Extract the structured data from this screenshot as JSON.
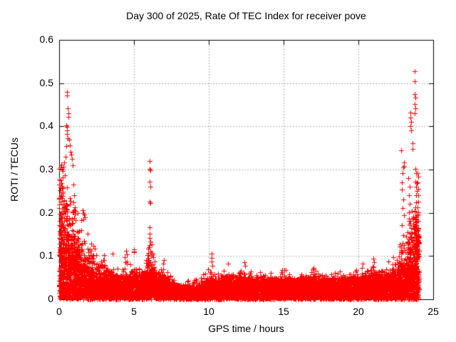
{
  "page": {
    "background": "#ffffff"
  },
  "chart_data": {
    "type": "scatter",
    "title": "Day 300 of 2025, Rate Of TEC Index for receiver pove",
    "xlabel": "GPS time / hours",
    "ylabel": "ROTI / TECUs",
    "xlim": [
      0,
      25
    ],
    "ylim": [
      0,
      0.6
    ],
    "xticks": [
      0,
      5,
      10,
      15,
      20,
      25
    ],
    "xtick_labels": [
      "0",
      "5",
      "10",
      "15",
      "20",
      "25"
    ],
    "yticks": [
      0,
      0.1,
      0.2,
      0.3,
      0.4,
      0.5,
      0.6
    ],
    "ytick_labels": [
      "0",
      "0.1",
      "0.2",
      "0.3",
      "0.4",
      "0.5",
      "0.6"
    ],
    "grid": true,
    "grid_style": "dashed",
    "grid_color": "#b0b0b0",
    "axis_color": "#000000",
    "marker": "plus",
    "marker_color": "#ff0000",
    "marker_size": 7,
    "legend": null,
    "x_data_range": [
      0,
      24.05
    ],
    "column_step": 0.01,
    "seed": 3002025,
    "baseline_band": [
      [
        0,
        0.07
      ],
      [
        0.5,
        0.08
      ],
      [
        1,
        0.075
      ],
      [
        1.5,
        0.06
      ],
      [
        2,
        0.05
      ],
      [
        3,
        0.045
      ],
      [
        4,
        0.042
      ],
      [
        5,
        0.042
      ],
      [
        6,
        0.05
      ],
      [
        6.5,
        0.045
      ],
      [
        7,
        0.04
      ],
      [
        7.6,
        0.032
      ],
      [
        8,
        0.026
      ],
      [
        9,
        0.026
      ],
      [
        9.5,
        0.03
      ],
      [
        10,
        0.036
      ],
      [
        11,
        0.04
      ],
      [
        12,
        0.042
      ],
      [
        13,
        0.038
      ],
      [
        14,
        0.036
      ],
      [
        15,
        0.038
      ],
      [
        16,
        0.036
      ],
      [
        17,
        0.04
      ],
      [
        18,
        0.037
      ],
      [
        19,
        0.037
      ],
      [
        20,
        0.04
      ],
      [
        21,
        0.042
      ],
      [
        22,
        0.045
      ],
      [
        22.8,
        0.05
      ],
      [
        23.3,
        0.055
      ],
      [
        23.8,
        0.06
      ],
      [
        24.05,
        0.055
      ]
    ],
    "dense_envelope": [
      [
        0,
        0.3
      ],
      [
        0.2,
        0.3
      ],
      [
        0.4,
        0.27
      ],
      [
        0.6,
        0.25
      ],
      [
        0.8,
        0.22
      ],
      [
        1.0,
        0.21
      ],
      [
        1.2,
        0.21
      ],
      [
        1.4,
        0.18
      ],
      [
        1.6,
        0.16
      ],
      [
        1.8,
        0.14
      ],
      [
        2.0,
        0.13
      ],
      [
        2.2,
        0.125
      ],
      [
        2.5,
        0.11
      ],
      [
        2.8,
        0.09
      ],
      [
        3.0,
        0.1
      ],
      [
        3.3,
        0.075
      ],
      [
        3.6,
        0.095
      ],
      [
        3.9,
        0.07
      ],
      [
        4.2,
        0.08
      ],
      [
        4.5,
        0.11
      ],
      [
        4.8,
        0.085
      ],
      [
        5.0,
        0.115
      ],
      [
        5.2,
        0.07
      ],
      [
        5.5,
        0.075
      ],
      [
        5.8,
        0.09
      ],
      [
        6.0,
        0.14
      ],
      [
        6.1,
        0.14
      ],
      [
        6.3,
        0.1
      ],
      [
        6.6,
        0.09
      ],
      [
        6.9,
        0.085
      ],
      [
        7.2,
        0.075
      ],
      [
        7.5,
        0.06
      ],
      [
        7.8,
        0.05
      ],
      [
        8.2,
        0.04
      ],
      [
        8.6,
        0.045
      ],
      [
        9.0,
        0.05
      ],
      [
        9.4,
        0.055
      ],
      [
        9.8,
        0.06
      ],
      [
        10.2,
        0.08
      ],
      [
        10.6,
        0.055
      ],
      [
        11.0,
        0.07
      ],
      [
        11.4,
        0.065
      ],
      [
        11.8,
        0.06
      ],
      [
        12.2,
        0.075
      ],
      [
        12.6,
        0.07
      ],
      [
        13.0,
        0.065
      ],
      [
        13.4,
        0.06
      ],
      [
        13.8,
        0.055
      ],
      [
        14.2,
        0.06
      ],
      [
        14.6,
        0.055
      ],
      [
        15.0,
        0.065
      ],
      [
        15.4,
        0.06
      ],
      [
        15.8,
        0.055
      ],
      [
        16.2,
        0.065
      ],
      [
        16.6,
        0.06
      ],
      [
        17.0,
        0.07
      ],
      [
        17.4,
        0.06
      ],
      [
        17.8,
        0.055
      ],
      [
        18.2,
        0.06
      ],
      [
        18.6,
        0.065
      ],
      [
        19.0,
        0.06
      ],
      [
        19.4,
        0.055
      ],
      [
        19.8,
        0.065
      ],
      [
        20.2,
        0.07
      ],
      [
        20.6,
        0.065
      ],
      [
        21.0,
        0.08
      ],
      [
        21.4,
        0.07
      ],
      [
        21.8,
        0.075
      ],
      [
        22.2,
        0.08
      ],
      [
        22.5,
        0.1
      ],
      [
        22.8,
        0.13
      ],
      [
        23.0,
        0.12
      ],
      [
        23.2,
        0.15
      ],
      [
        23.4,
        0.18
      ],
      [
        23.6,
        0.2
      ],
      [
        23.8,
        0.22
      ],
      [
        23.9,
        0.2
      ],
      [
        24.05,
        0.18
      ]
    ],
    "density_regions": [
      {
        "x0": 0.0,
        "x1": 0.35,
        "p": 1.0,
        "n": 7,
        "k": 1.1
      },
      {
        "x0": 0.35,
        "x1": 0.85,
        "p": 1.0,
        "n": 5,
        "k": 1.5
      },
      {
        "x0": 0.85,
        "x1": 1.35,
        "p": 0.95,
        "n": 4,
        "k": 1.5
      },
      {
        "x0": 1.35,
        "x1": 2.2,
        "p": 0.85,
        "n": 3,
        "k": 1.8
      },
      {
        "x0": 2.2,
        "x1": 3.2,
        "p": 0.7,
        "n": 2,
        "k": 2.0
      },
      {
        "x0": 3.2,
        "x1": 5.85,
        "p": 0.55,
        "n": 2,
        "k": 2.2
      },
      {
        "x0": 5.85,
        "x1": 6.3,
        "p": 0.9,
        "n": 4,
        "k": 1.4
      },
      {
        "x0": 6.3,
        "x1": 7.6,
        "p": 0.55,
        "n": 2,
        "k": 2.0
      },
      {
        "x0": 7.6,
        "x1": 9.3,
        "p": 0.4,
        "n": 1,
        "k": 2.4
      },
      {
        "x0": 9.3,
        "x1": 20.5,
        "p": 0.55,
        "n": 2,
        "k": 2.3
      },
      {
        "x0": 20.5,
        "x1": 22.6,
        "p": 0.6,
        "n": 2,
        "k": 2.1
      },
      {
        "x0": 22.6,
        "x1": 23.3,
        "p": 0.85,
        "n": 3,
        "k": 1.7
      },
      {
        "x0": 23.3,
        "x1": 24.05,
        "p": 1.0,
        "n": 5,
        "k": 1.4
      }
    ],
    "peak_points": [
      [
        0.5,
        0.48
      ],
      [
        0.51,
        0.471
      ],
      [
        0.55,
        0.442
      ],
      [
        0.6,
        0.431
      ],
      [
        0.61,
        0.422
      ],
      [
        0.46,
        0.402
      ],
      [
        0.52,
        0.399
      ],
      [
        0.53,
        0.391
      ],
      [
        0.52,
        0.383
      ],
      [
        0.56,
        0.372
      ],
      [
        0.66,
        0.37
      ],
      [
        0.7,
        0.356
      ],
      [
        0.74,
        0.342
      ],
      [
        0.8,
        0.334
      ],
      [
        0.86,
        0.324
      ],
      [
        0.9,
        0.31
      ],
      [
        0.13,
        0.311
      ],
      [
        0.17,
        0.302
      ],
      [
        0.22,
        0.297
      ],
      [
        0.28,
        0.306
      ],
      [
        0.34,
        0.317
      ],
      [
        0.42,
        0.329
      ],
      [
        0.47,
        0.355
      ],
      [
        0.36,
        0.286
      ],
      [
        0.25,
        0.282
      ],
      [
        0.95,
        0.265
      ],
      [
        1.0,
        0.24
      ],
      [
        1.05,
        0.212
      ],
      [
        1.1,
        0.205
      ],
      [
        1.55,
        0.206
      ],
      [
        1.6,
        0.2
      ],
      [
        1.65,
        0.196
      ],
      [
        1.7,
        0.19
      ],
      [
        1.62,
        0.184
      ],
      [
        1.9,
        0.152
      ],
      [
        2.3,
        0.123
      ],
      [
        2.36,
        0.117
      ],
      [
        3.0,
        0.102
      ],
      [
        3.58,
        0.106
      ],
      [
        4.48,
        0.112
      ],
      [
        4.52,
        0.104
      ],
      [
        5.01,
        0.116
      ],
      [
        5.0,
        0.108
      ],
      [
        6.03,
        0.32
      ],
      [
        6.05,
        0.302
      ],
      [
        6.1,
        0.299
      ],
      [
        6.04,
        0.272
      ],
      [
        6.08,
        0.261
      ],
      [
        6.03,
        0.226
      ],
      [
        6.09,
        0.223
      ],
      [
        6.05,
        0.166
      ],
      [
        6.07,
        0.152
      ],
      [
        6.06,
        0.141
      ],
      [
        6.1,
        0.133
      ],
      [
        6.0,
        0.12
      ],
      [
        7.0,
        0.091
      ],
      [
        10.2,
        0.106
      ],
      [
        10.21,
        0.096
      ],
      [
        10.19,
        0.087
      ],
      [
        10.22,
        0.078
      ],
      [
        11.3,
        0.082
      ],
      [
        12.4,
        0.086
      ],
      [
        12.43,
        0.077
      ],
      [
        14.9,
        0.068
      ],
      [
        17.0,
        0.072
      ],
      [
        20.3,
        0.082
      ],
      [
        21.0,
        0.094
      ],
      [
        21.05,
        0.086
      ],
      [
        22.0,
        0.088
      ],
      [
        22.35,
        0.098
      ],
      [
        22.88,
        0.344
      ],
      [
        23.04,
        0.316
      ],
      [
        23.06,
        0.309
      ],
      [
        23.02,
        0.305
      ],
      [
        22.95,
        0.291
      ],
      [
        22.9,
        0.271
      ],
      [
        22.92,
        0.254
      ],
      [
        23.0,
        0.231
      ],
      [
        22.97,
        0.211
      ],
      [
        23.05,
        0.194
      ],
      [
        22.91,
        0.171
      ],
      [
        23.0,
        0.149
      ],
      [
        22.94,
        0.131
      ],
      [
        23.07,
        0.119
      ],
      [
        23.48,
        0.432
      ],
      [
        23.49,
        0.421
      ],
      [
        23.5,
        0.411
      ],
      [
        23.49,
        0.401
      ],
      [
        23.5,
        0.391
      ],
      [
        23.6,
        0.361
      ],
      [
        23.64,
        0.347
      ],
      [
        23.35,
        0.281
      ],
      [
        23.42,
        0.261
      ],
      [
        23.38,
        0.241
      ],
      [
        23.45,
        0.221
      ],
      [
        23.4,
        0.201
      ],
      [
        23.36,
        0.186
      ],
      [
        23.44,
        0.171
      ],
      [
        23.3,
        0.155
      ],
      [
        23.77,
        0.528
      ],
      [
        23.77,
        0.505
      ],
      [
        23.78,
        0.474
      ],
      [
        23.79,
        0.467
      ],
      [
        23.78,
        0.451
      ],
      [
        23.79,
        0.442
      ],
      [
        23.78,
        0.43
      ],
      [
        23.8,
        0.302
      ],
      [
        23.85,
        0.291
      ],
      [
        23.82,
        0.272
      ],
      [
        23.88,
        0.261
      ],
      [
        23.85,
        0.241
      ],
      [
        23.9,
        0.269
      ],
      [
        23.92,
        0.251
      ],
      [
        23.86,
        0.225
      ],
      [
        23.83,
        0.212
      ],
      [
        23.8,
        0.186
      ],
      [
        23.83,
        0.179
      ],
      [
        23.86,
        0.172
      ],
      [
        23.81,
        0.166
      ],
      [
        23.84,
        0.159
      ],
      [
        23.87,
        0.184
      ],
      [
        23.82,
        0.191
      ],
      [
        23.85,
        0.19
      ],
      [
        23.88,
        0.166
      ],
      [
        23.83,
        0.153
      ],
      [
        23.8,
        0.173
      ],
      [
        23.86,
        0.157
      ],
      [
        23.9,
        0.181
      ],
      [
        23.78,
        0.161
      ],
      [
        23.89,
        0.149
      ],
      [
        23.91,
        0.163
      ],
      [
        23.97,
        0.292
      ],
      [
        23.98,
        0.284
      ],
      [
        23.97,
        0.271
      ],
      [
        23.99,
        0.256
      ],
      [
        23.98,
        0.241
      ],
      [
        23.99,
        0.226
      ],
      [
        23.97,
        0.212
      ],
      [
        23.99,
        0.196
      ],
      [
        23.98,
        0.181
      ],
      [
        24.0,
        0.165
      ],
      [
        23.99,
        0.15
      ]
    ]
  }
}
